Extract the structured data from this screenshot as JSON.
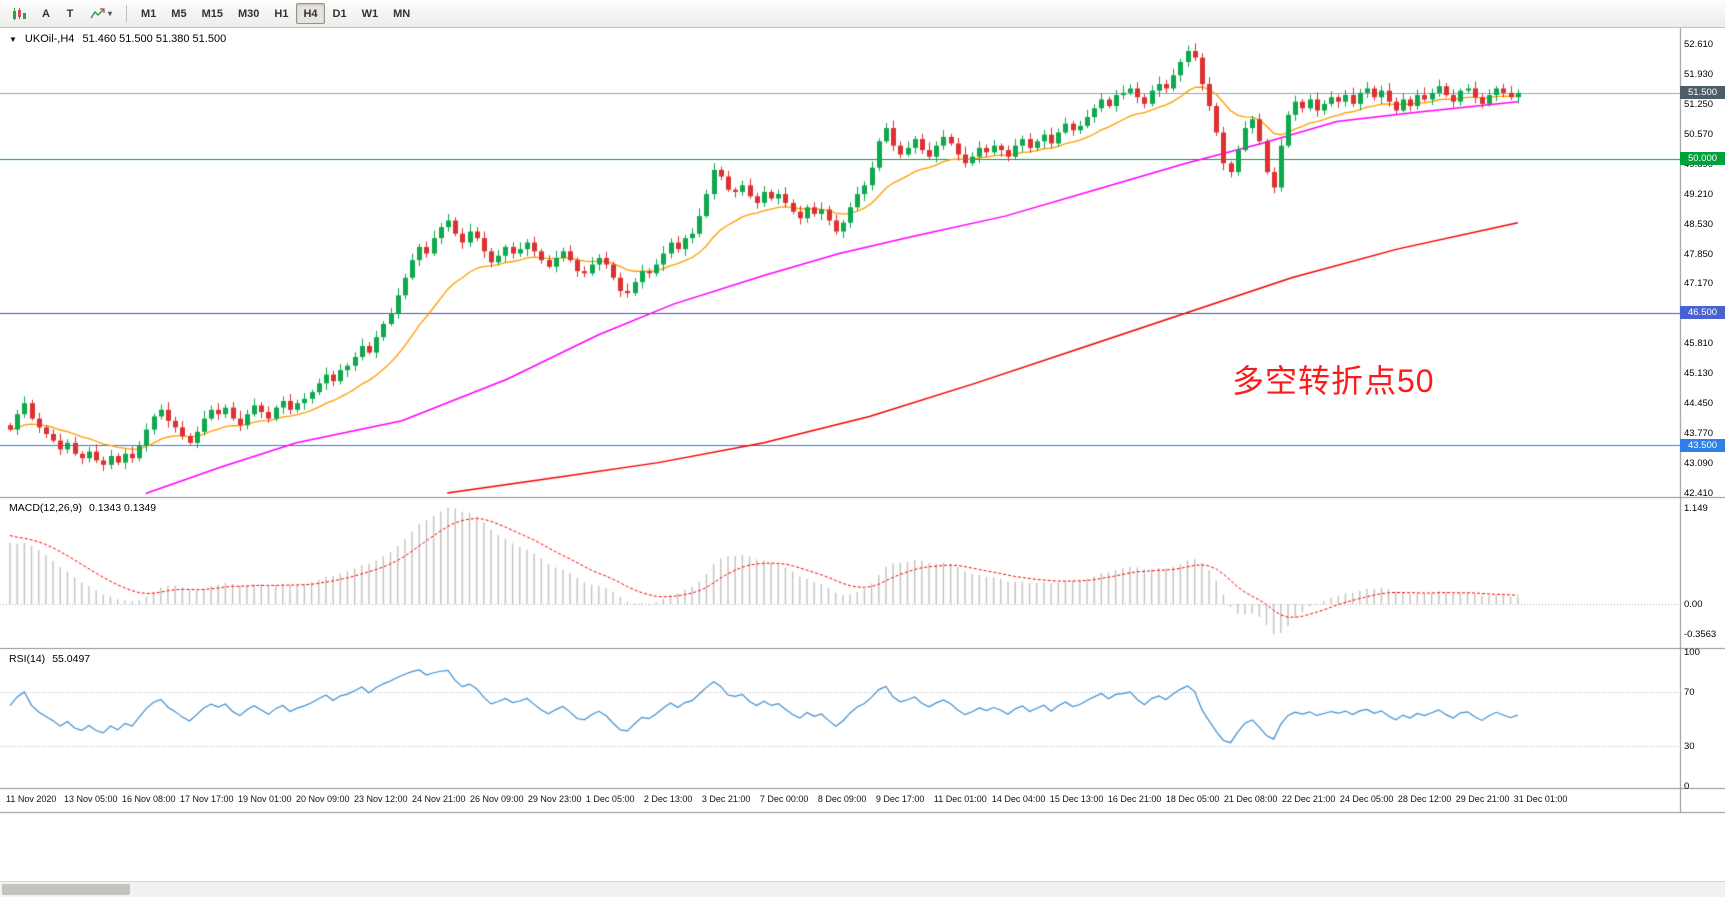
{
  "toolbar": {
    "left_icons": [
      {
        "name": "bar-chart"
      },
      {
        "label": "A"
      },
      {
        "label": "T"
      },
      {
        "name": "indicators",
        "caret": "▾"
      }
    ],
    "timeframes": [
      {
        "label": "M1",
        "active": false
      },
      {
        "label": "M5",
        "active": false
      },
      {
        "label": "M15",
        "active": false
      },
      {
        "label": "M30",
        "active": false
      },
      {
        "label": "H1",
        "active": false
      },
      {
        "label": "H4",
        "active": true
      },
      {
        "label": "D1",
        "active": false
      },
      {
        "label": "W1",
        "active": false
      },
      {
        "label": "MN",
        "active": false
      }
    ]
  },
  "main_chart": {
    "dropdown_glyph": "▼",
    "symbol": "UKOil-,H4",
    "ohlc": "51.460 51.500 51.380 51.500",
    "annotation": {
      "text": "多空转折点50",
      "color": "#ff1a1a"
    }
  },
  "chart_data": {
    "type": "candlestick",
    "symbol": "UKOil-",
    "timeframe": "H4",
    "ohlc_display": {
      "open": 51.46,
      "high": 51.5,
      "low": 51.38,
      "close": 51.5
    },
    "colors": {
      "bull": "#0ea84e",
      "bear": "#dd3131",
      "ma_fast": "#ff9d00",
      "ma_mid": "#ff00ff",
      "ma_slow": "#f40000",
      "macd_bar": "#c2c2c2",
      "macd_signal": "#ff0000",
      "rsi_line": "#3f8fd2"
    },
    "price_axis_ticks": [
      "52.610",
      "51.930",
      "51.250",
      "50.570",
      "49.890",
      "49.210",
      "48.530",
      "47.850",
      "47.170",
      "46.490",
      "45.810",
      "45.130",
      "44.450",
      "43.770",
      "43.090",
      "42.410"
    ],
    "price_lines": [
      {
        "price": 51.5,
        "line": "#8fa8b8",
        "tag": "51.500",
        "tag_bg": "#4e5d66"
      },
      {
        "price": 50.0,
        "line": "#00a13c",
        "tag": "50.000",
        "tag_bg": "#00a13c"
      },
      {
        "price": 46.5,
        "line": "#3a57c4",
        "tag": "46.500",
        "tag_bg": "#4a62cf"
      },
      {
        "price": 43.5,
        "line": "#2f7fe8",
        "tag": "43.500",
        "tag_bg": "#2f7fe8"
      }
    ],
    "first_open": 43.95,
    "closes": [
      43.85,
      44.2,
      44.45,
      44.1,
      43.9,
      43.75,
      43.6,
      43.4,
      43.55,
      43.3,
      43.2,
      43.35,
      43.15,
      43.05,
      43.25,
      43.1,
      43.3,
      43.2,
      43.5,
      43.85,
      44.15,
      44.3,
      44.05,
      43.9,
      43.7,
      43.55,
      43.8,
      44.1,
      44.3,
      44.2,
      44.35,
      44.1,
      43.95,
      44.2,
      44.4,
      44.25,
      44.1,
      44.35,
      44.5,
      44.3,
      44.45,
      44.55,
      44.7,
      44.9,
      45.1,
      44.95,
      45.2,
      45.3,
      45.5,
      45.75,
      45.6,
      45.95,
      46.25,
      46.5,
      46.9,
      47.3,
      47.7,
      48.0,
      47.85,
      48.2,
      48.45,
      48.6,
      48.3,
      48.1,
      48.35,
      48.2,
      47.9,
      47.65,
      47.8,
      48.0,
      47.85,
      47.95,
      48.1,
      47.9,
      47.7,
      47.55,
      47.75,
      47.9,
      47.7,
      47.45,
      47.4,
      47.6,
      47.75,
      47.6,
      47.3,
      47.0,
      46.95,
      47.2,
      47.45,
      47.4,
      47.6,
      47.85,
      48.1,
      47.95,
      48.2,
      48.3,
      48.7,
      49.2,
      49.75,
      49.6,
      49.3,
      49.25,
      49.4,
      49.15,
      49.0,
      49.25,
      49.1,
      49.2,
      49.0,
      48.8,
      48.65,
      48.9,
      48.75,
      48.85,
      48.6,
      48.35,
      48.55,
      48.9,
      49.2,
      49.4,
      49.8,
      50.4,
      50.7,
      50.3,
      50.1,
      50.25,
      50.45,
      50.2,
      50.05,
      50.3,
      50.5,
      50.35,
      50.1,
      49.9,
      50.05,
      50.25,
      50.15,
      50.3,
      50.2,
      50.05,
      50.3,
      50.45,
      50.25,
      50.4,
      50.55,
      50.35,
      50.6,
      50.8,
      50.65,
      50.75,
      50.95,
      51.15,
      51.35,
      51.2,
      51.45,
      51.5,
      51.6,
      51.4,
      51.25,
      51.55,
      51.7,
      51.6,
      51.9,
      52.2,
      52.45,
      52.3,
      51.7,
      51.2,
      50.6,
      49.9,
      49.7,
      50.2,
      50.7,
      50.9,
      50.4,
      49.7,
      49.35,
      50.3,
      51.0,
      51.3,
      51.15,
      51.35,
      51.1,
      51.25,
      51.4,
      51.3,
      51.45,
      51.25,
      51.5,
      51.6,
      51.4,
      51.55,
      51.3,
      51.1,
      51.35,
      51.2,
      51.45,
      51.35,
      51.5,
      51.65,
      51.45,
      51.3,
      51.55,
      51.6,
      51.4,
      51.25,
      51.45,
      51.6,
      51.5,
      51.4,
      51.5
    ],
    "ma_overlays": [
      {
        "name": "ma-fast-orange",
        "type": "ema",
        "period": 16,
        "color": "#ff9d00"
      },
      {
        "name": "ma-mid-magenta",
        "type": "anchors",
        "color": "#ff00ff",
        "points": [
          [
            0.09,
            42.4
          ],
          [
            0.14,
            43.0
          ],
          [
            0.19,
            43.55
          ],
          [
            0.26,
            44.05
          ],
          [
            0.33,
            45.0
          ],
          [
            0.39,
            46.0
          ],
          [
            0.44,
            46.7
          ],
          [
            0.5,
            47.35
          ],
          [
            0.55,
            47.85
          ],
          [
            0.6,
            48.25
          ],
          [
            0.66,
            48.7
          ],
          [
            0.72,
            49.3
          ],
          [
            0.78,
            49.9
          ],
          [
            0.83,
            50.35
          ],
          [
            0.88,
            50.85
          ],
          [
            0.93,
            51.05
          ],
          [
            1,
            51.3
          ]
        ]
      },
      {
        "name": "ma-slow-red",
        "type": "anchors",
        "color": "#f40000",
        "points": [
          [
            0.29,
            42.41
          ],
          [
            0.36,
            42.75
          ],
          [
            0.43,
            43.1
          ],
          [
            0.5,
            43.55
          ],
          [
            0.57,
            44.15
          ],
          [
            0.64,
            44.9
          ],
          [
            0.71,
            45.7
          ],
          [
            0.78,
            46.5
          ],
          [
            0.85,
            47.3
          ],
          [
            0.92,
            47.95
          ],
          [
            1,
            48.55
          ]
        ]
      }
    ],
    "indicators": {
      "macd": {
        "label": "MACD(12,26,9)",
        "values": "0.1343 0.1349",
        "fast": 12,
        "slow": 26,
        "signal": 9,
        "axis_labels": [
          {
            "text": "1.149",
            "value": 1.149
          },
          {
            "text": "0.00",
            "value": 0
          },
          {
            "text": "-0.3563",
            "value": -0.3563
          }
        ]
      },
      "rsi": {
        "label": "RSI(14)",
        "value": "55.0497",
        "period": 14,
        "levels": [
          70,
          30
        ],
        "axis_labels": [
          {
            "text": "100",
            "value": 100
          },
          {
            "text": "70",
            "value": 70
          },
          {
            "text": "30",
            "value": 30
          },
          {
            "text": "0",
            "value": 0
          }
        ]
      }
    },
    "time_axis": [
      "11 Nov 2020",
      "13 Nov 05:00",
      "16 Nov 08:00",
      "17 Nov 17:00",
      "19 Nov 01:00",
      "20 Nov 09:00",
      "23 Nov 12:00",
      "24 Nov 21:00",
      "26 Nov 09:00",
      "29 Nov 23:00",
      "1 Dec 05:00",
      "2 Dec 13:00",
      "3 Dec 21:00",
      "7 Dec 00:00",
      "8 Dec 09:00",
      "9 Dec 17:00",
      "11 Dec 01:00",
      "14 Dec 04:00",
      "15 Dec 13:00",
      "16 Dec 21:00",
      "18 Dec 05:00",
      "21 Dec 08:00",
      "22 Dec 21:00",
      "24 Dec 05:00",
      "28 Dec 12:00",
      "29 Dec 21:00",
      "31 Dec 01:00"
    ]
  }
}
